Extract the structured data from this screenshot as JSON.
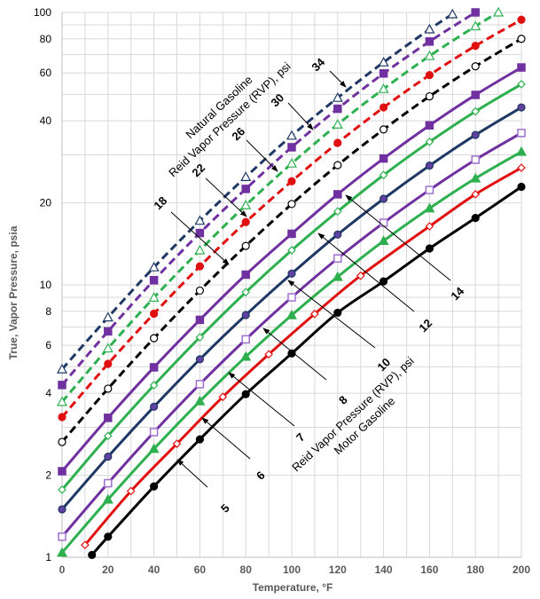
{
  "chart_data": {
    "type": "line",
    "title": "",
    "xlabel": "Temperature, °F",
    "ylabel": "True, Vapor Pressure, psia",
    "xlim": [
      0,
      200
    ],
    "ylim": [
      1,
      100
    ],
    "yscale": "log",
    "grid": true,
    "x_ticks": [
      0,
      20,
      40,
      60,
      80,
      100,
      120,
      140,
      160,
      180,
      200
    ],
    "y_ticks": [
      1,
      2,
      4,
      6,
      8,
      10,
      20,
      40,
      60,
      80,
      100
    ],
    "annotations": {
      "natural_group": [
        "Natural Gasoline",
        "Reid Vapor Pressure (RVP), psi"
      ],
      "motor_group": [
        "Reid Vapor Pressure (RVP), psi",
        "Motor Gasoline"
      ]
    },
    "series": [
      {
        "label": "34",
        "group": "natural",
        "color": "#1f3864",
        "dash": true,
        "marker": "triangle-open",
        "x": [
          0,
          20,
          40,
          60,
          80,
          100,
          120,
          140,
          160,
          170
        ],
        "y": [
          4.9,
          7.6,
          11.6,
          17.2,
          24.9,
          35.3,
          48.6,
          65.6,
          86.7,
          98.5
        ]
      },
      {
        "label": "30",
        "group": "natural",
        "color": "#7030a0",
        "dash": true,
        "marker": "square-filled",
        "x": [
          0,
          20,
          40,
          60,
          80,
          100,
          120,
          140,
          160,
          180
        ],
        "y": [
          4.29,
          6.75,
          10.4,
          15.5,
          22.5,
          32.0,
          44.3,
          59.7,
          78.2,
          100
        ]
      },
      {
        "label": "26",
        "group": "natural",
        "color": "#2eb050",
        "dash": true,
        "marker": "triangle-open",
        "x": [
          0,
          20,
          40,
          60,
          80,
          100,
          120,
          140,
          160,
          180,
          190
        ],
        "y": [
          3.72,
          5.85,
          8.98,
          13.4,
          19.6,
          27.9,
          38.8,
          52.4,
          69.2,
          89,
          100
        ]
      },
      {
        "label": "22",
        "group": "natural",
        "color": "#e01010",
        "dash": true,
        "marker": "circle-filled",
        "x": [
          0,
          20,
          40,
          60,
          80,
          100,
          120,
          140,
          160,
          180,
          200
        ],
        "y": [
          3.27,
          5.13,
          7.84,
          11.7,
          17.0,
          24.0,
          33.2,
          44.8,
          58.9,
          75.4,
          94
        ]
      },
      {
        "label": "18",
        "group": "natural",
        "color": "#000000",
        "dash": true,
        "marker": "circle-open",
        "x": [
          0,
          20,
          40,
          60,
          80,
          100,
          120,
          140,
          160,
          180,
          200
        ],
        "y": [
          2.65,
          4.16,
          6.37,
          9.53,
          13.9,
          19.8,
          27.5,
          37.2,
          49.2,
          63.4,
          80
        ]
      },
      {
        "label": "14",
        "group": "motor",
        "color": "#7030a0",
        "dash": false,
        "marker": "square-filled",
        "x": [
          0,
          20,
          40,
          60,
          80,
          100,
          120,
          140,
          160,
          180,
          200
        ],
        "y": [
          2.07,
          3.25,
          4.98,
          7.44,
          10.9,
          15.4,
          21.5,
          29.1,
          38.5,
          49.8,
          62.8
        ]
      },
      {
        "label": "12",
        "group": "motor",
        "color": "#2eb050",
        "dash": false,
        "marker": "diamond-open",
        "x": [
          0,
          20,
          40,
          60,
          80,
          100,
          120,
          140,
          160,
          180,
          200
        ],
        "y": [
          1.77,
          2.79,
          4.28,
          6.42,
          9.4,
          13.4,
          18.6,
          25.3,
          33.5,
          43.3,
          54.5
        ]
      },
      {
        "label": "10",
        "group": "motor",
        "color": "#1f3864",
        "dash": false,
        "marker": "circle-filled-purple",
        "x": [
          0,
          20,
          40,
          60,
          80,
          100,
          120,
          140,
          160,
          180,
          200
        ],
        "y": [
          1.5,
          2.34,
          3.57,
          5.33,
          7.75,
          11.0,
          15.3,
          20.7,
          27.4,
          35.5,
          44.8
        ]
      },
      {
        "label": "8",
        "group": "motor",
        "color": "#7030a0",
        "dash": false,
        "marker": "square-open",
        "x": [
          0,
          20,
          40,
          60,
          80,
          100,
          120,
          140,
          160,
          180,
          200
        ],
        "y": [
          1.19,
          1.87,
          2.88,
          4.32,
          6.31,
          9.0,
          12.5,
          16.9,
          22.3,
          28.8,
          36.1
        ]
      },
      {
        "label": "7",
        "group": "motor",
        "color": "#2eb050",
        "dash": false,
        "marker": "triangle-filled",
        "x": [
          0,
          20,
          40,
          60,
          80,
          100,
          120,
          140,
          160,
          180,
          200
        ],
        "y": [
          1.04,
          1.63,
          2.5,
          3.74,
          5.45,
          7.74,
          10.7,
          14.5,
          19.1,
          24.6,
          30.8
        ]
      },
      {
        "label": "6",
        "group": "motor",
        "color": "#e01010",
        "dash": false,
        "marker": "diamond-open",
        "x": [
          10,
          30,
          50,
          70,
          90,
          110,
          130,
          160,
          180,
          200
        ],
        "y": [
          1.11,
          1.75,
          2.61,
          3.88,
          5.56,
          7.82,
          10.8,
          16.4,
          21.5,
          26.9
        ]
      },
      {
        "label": "5",
        "group": "motor",
        "color": "#000000",
        "dash": false,
        "marker": "circle-filled",
        "x": [
          13,
          20,
          40,
          60,
          80,
          100,
          120,
          140,
          160,
          180,
          200
        ],
        "y": [
          1.02,
          1.19,
          1.82,
          2.71,
          3.97,
          5.6,
          7.9,
          10.3,
          13.6,
          17.6,
          22.9
        ]
      }
    ]
  }
}
